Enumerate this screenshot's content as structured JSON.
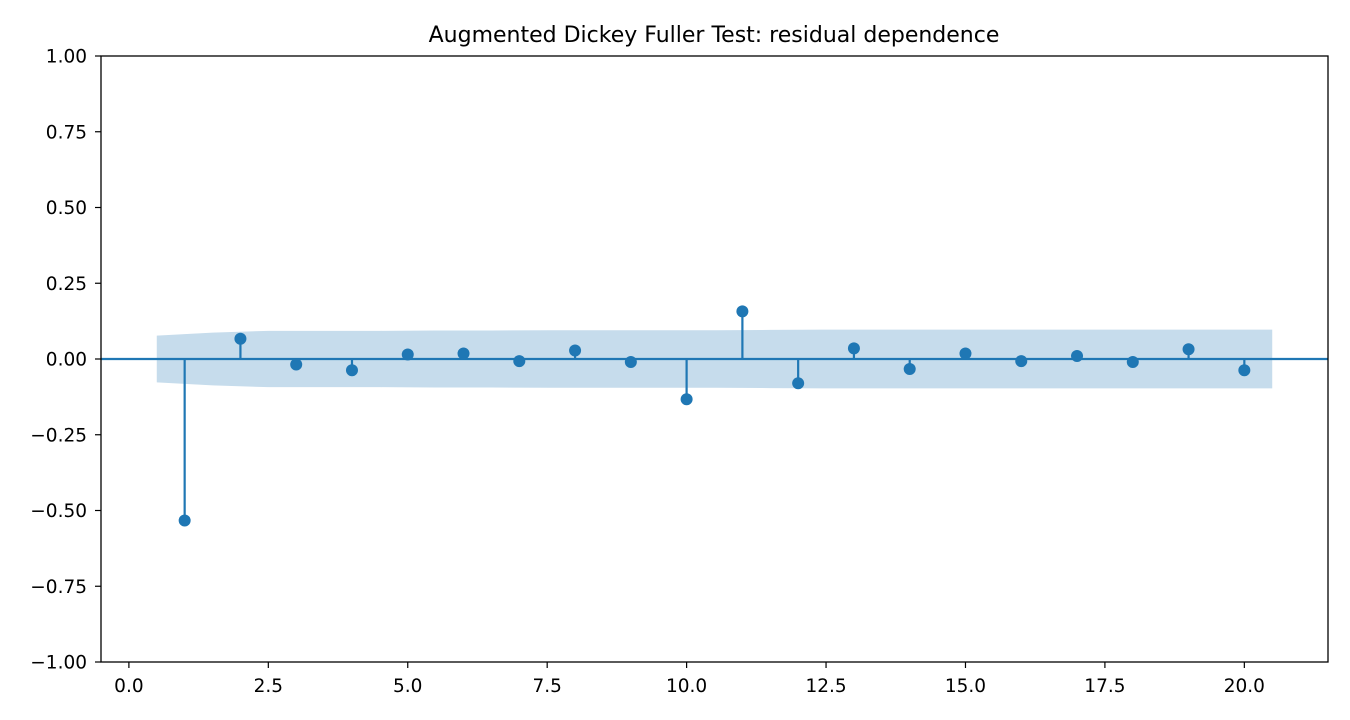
{
  "chart_data": {
    "type": "stem",
    "title": "Augmented Dickey Fuller Test: residual dependence",
    "xlabel": "",
    "ylabel": "",
    "xlim": [
      -0.5,
      21.5
    ],
    "ylim": [
      -1.0,
      1.0
    ],
    "x_ticks": [
      0.0,
      2.5,
      5.0,
      7.5,
      10.0,
      12.5,
      15.0,
      17.5,
      20.0
    ],
    "x_tick_labels": [
      "0.0",
      "2.5",
      "5.0",
      "7.5",
      "10.0",
      "12.5",
      "15.0",
      "17.5",
      "20.0"
    ],
    "y_ticks": [
      -1.0,
      -0.75,
      -0.5,
      -0.25,
      0.0,
      0.25,
      0.5,
      0.75,
      1.0
    ],
    "y_tick_labels": [
      "−1.00",
      "−0.75",
      "−0.50",
      "−0.25",
      "0.00",
      "0.25",
      "0.50",
      "0.75",
      "1.00"
    ],
    "grid": false,
    "lags": [
      1,
      2,
      3,
      4,
      5,
      6,
      7,
      8,
      9,
      10,
      11,
      12,
      13,
      14,
      15,
      16,
      17,
      18,
      19,
      20
    ],
    "values": [
      -0.533,
      0.067,
      -0.018,
      -0.037,
      0.015,
      0.018,
      -0.007,
      0.028,
      -0.01,
      -0.133,
      0.157,
      -0.08,
      0.035,
      -0.033,
      0.018,
      -0.007,
      0.01,
      -0.01,
      0.032,
      -0.037
    ],
    "confidence_band": {
      "x": [
        0.5,
        1.5,
        2.5,
        3.5,
        4.5,
        5.5,
        6.5,
        7.5,
        8.5,
        9.5,
        10.5,
        11.5,
        12.5,
        13.5,
        14.5,
        15.5,
        16.5,
        17.5,
        18.5,
        19.5,
        20.5
      ],
      "upper": [
        0.077,
        0.087,
        0.093,
        0.093,
        0.093,
        0.094,
        0.094,
        0.095,
        0.095,
        0.095,
        0.095,
        0.096,
        0.097,
        0.097,
        0.097,
        0.097,
        0.097,
        0.097,
        0.097,
        0.097,
        0.097
      ]
    },
    "colors": {
      "series": "#1f77b4",
      "band": "#c6dcec",
      "axes": "#000000"
    }
  }
}
